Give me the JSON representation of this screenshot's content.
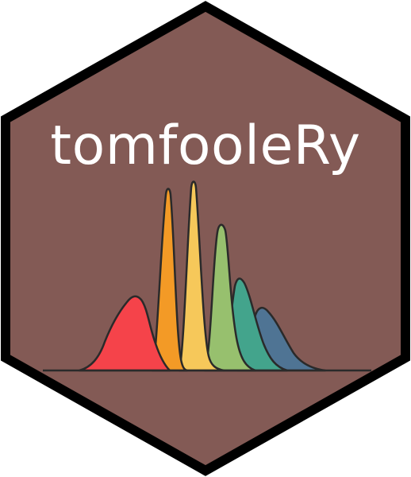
{
  "logo": {
    "title": "tomfooleRy",
    "hex_fill_color": "#835A55",
    "hex_border_color": "#000000",
    "title_color": "#FFFFFF",
    "outline_color": "#2A2A2A",
    "peak_colors": [
      {
        "name": "red-peak",
        "color": "#F5434A"
      },
      {
        "name": "orange-peak",
        "color": "#F39A26"
      },
      {
        "name": "yellow-peak",
        "color": "#F6C85A"
      },
      {
        "name": "lime-peak",
        "color": "#97C06E"
      },
      {
        "name": "teal-peak",
        "color": "#43A48C"
      },
      {
        "name": "slate-blue-peak",
        "color": "#4F7494"
      }
    ]
  }
}
